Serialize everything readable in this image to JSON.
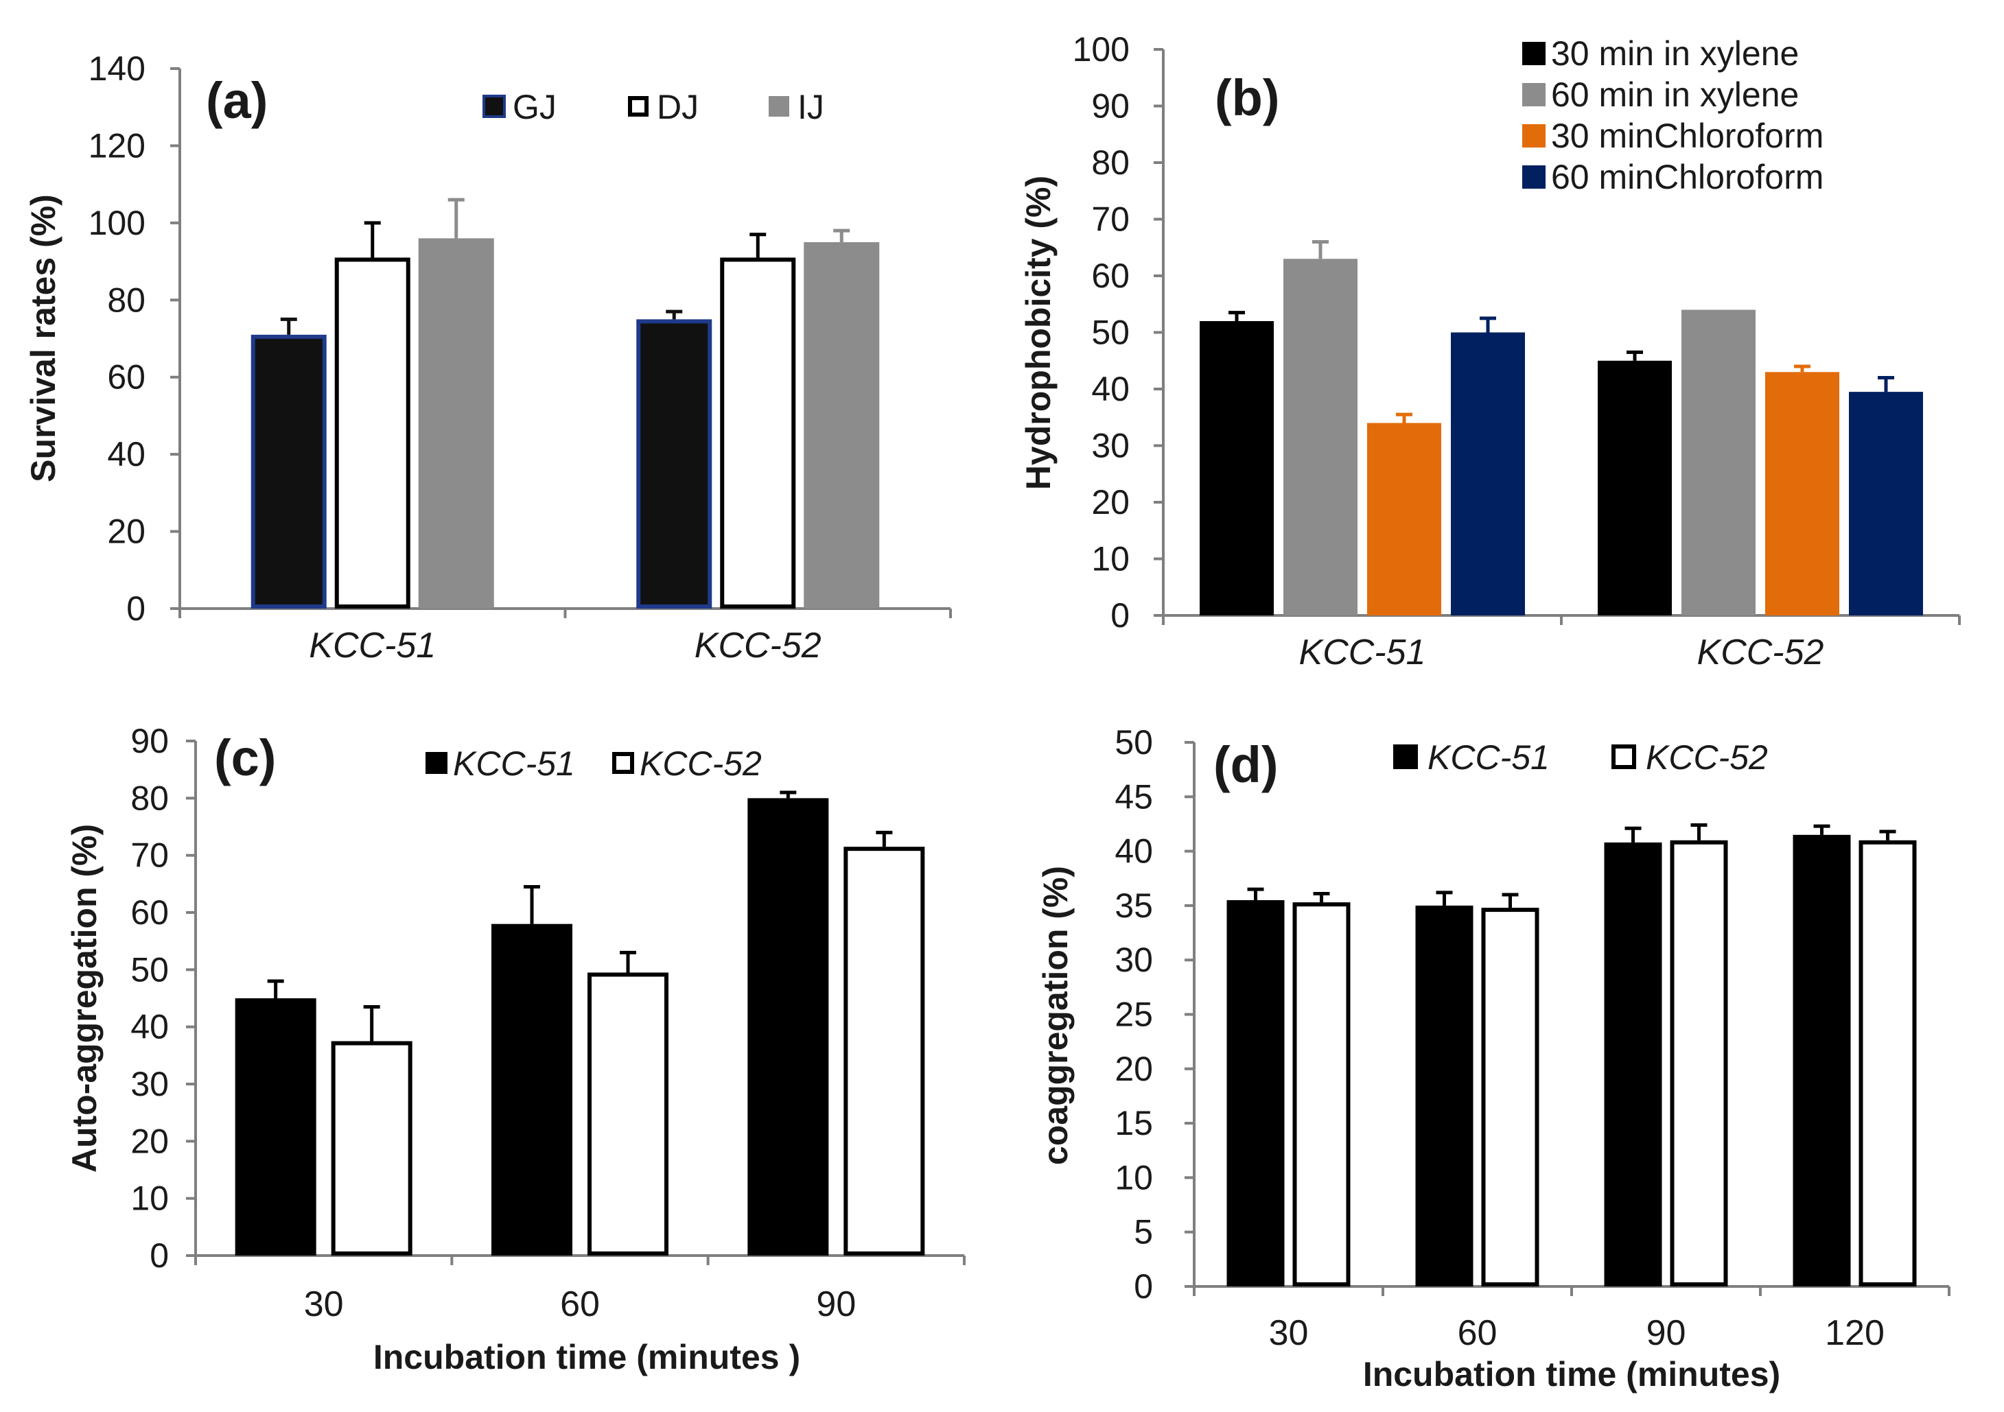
{
  "chart_data": [
    {
      "type": "bar",
      "panel_label": "(a)",
      "categories": [
        "KCC-51",
        "KCC-52"
      ],
      "categories_italic": true,
      "ylabel": "Survival rates (%)",
      "xlabel": "",
      "ylim": [
        0,
        140
      ],
      "yticks": [
        0,
        20,
        40,
        60,
        80,
        100,
        120,
        140
      ],
      "grid": false,
      "legend_placement": "top-right",
      "series": [
        {
          "name": "GJ",
          "values": [
            71,
            75
          ],
          "errors": [
            4,
            2
          ],
          "color": "#111111",
          "edge": "#1f3a8a"
        },
        {
          "name": "DJ",
          "values": [
            91,
            91
          ],
          "errors": [
            9,
            6
          ],
          "color": "#ffffff",
          "edge": "#000000"
        },
        {
          "name": "IJ",
          "values": [
            96,
            95
          ],
          "errors": [
            10,
            3
          ],
          "color": "#8c8c8c",
          "edge": "#8c8c8c"
        }
      ]
    },
    {
      "type": "bar",
      "panel_label": "(b)",
      "categories": [
        "KCC-51",
        "KCC-52"
      ],
      "categories_italic": true,
      "ylabel": "Hydrophobicity (%)",
      "xlabel": "",
      "ylim": [
        0,
        100
      ],
      "yticks": [
        0,
        10,
        20,
        30,
        40,
        50,
        60,
        70,
        80,
        90,
        100
      ],
      "grid": false,
      "legend_placement": "top-right",
      "series": [
        {
          "name": "30 min in xylene",
          "values": [
            52,
            45
          ],
          "errors": [
            1.5,
            1.5
          ],
          "color": "#000000",
          "edge": "#000000"
        },
        {
          "name": "60 min in xylene",
          "values": [
            63,
            54
          ],
          "errors": [
            3,
            0
          ],
          "color": "#8c8c8c",
          "edge": "#8c8c8c"
        },
        {
          "name": "30 minChloroform",
          "values": [
            34,
            43
          ],
          "errors": [
            1.5,
            1
          ],
          "color": "#e36c0a",
          "edge": "#e36c0a"
        },
        {
          "name": "60 minChloroform",
          "values": [
            50,
            39.5
          ],
          "errors": [
            2.5,
            2.5
          ],
          "color": "#002060",
          "edge": "#002060"
        }
      ]
    },
    {
      "type": "bar",
      "panel_label": "(c)",
      "categories": [
        "30",
        "60",
        "90"
      ],
      "categories_italic": false,
      "ylabel": "Auto-aggregation (%)",
      "xlabel": "Incubation time (minutes )",
      "ylim": [
        0,
        90
      ],
      "yticks": [
        0,
        10,
        20,
        30,
        40,
        50,
        60,
        70,
        80,
        90
      ],
      "grid": false,
      "legend_placement": "top-center",
      "series": [
        {
          "name": "KCC-51",
          "values": [
            45,
            58,
            80
          ],
          "errors": [
            3,
            6.5,
            1
          ],
          "color": "#000000",
          "edge": "#000000"
        },
        {
          "name": "KCC-52",
          "values": [
            37.5,
            49.5,
            71.5
          ],
          "errors": [
            6,
            3.5,
            2.5
          ],
          "color": "#ffffff",
          "edge": "#000000"
        }
      ]
    },
    {
      "type": "bar",
      "panel_label": "(d)",
      "categories": [
        "30",
        "60",
        "90",
        "120"
      ],
      "categories_italic": false,
      "ylabel": "coaggregation (%)",
      "xlabel": "Incubation time (minutes)",
      "ylim": [
        0,
        50
      ],
      "yticks": [
        0,
        5,
        10,
        15,
        20,
        25,
        30,
        35,
        40,
        45,
        50
      ],
      "grid": false,
      "legend_placement": "top-center",
      "series": [
        {
          "name": "KCC-51",
          "values": [
            35.5,
            35,
            40.8,
            41.5
          ],
          "errors": [
            1,
            1.2,
            1.3,
            0.8
          ],
          "color": "#000000",
          "edge": "#000000"
        },
        {
          "name": "KCC-52",
          "values": [
            35.3,
            34.8,
            41,
            41
          ],
          "errors": [
            0.8,
            1.2,
            1.4,
            0.8
          ],
          "color": "#ffffff",
          "edge": "#000000"
        }
      ]
    }
  ]
}
